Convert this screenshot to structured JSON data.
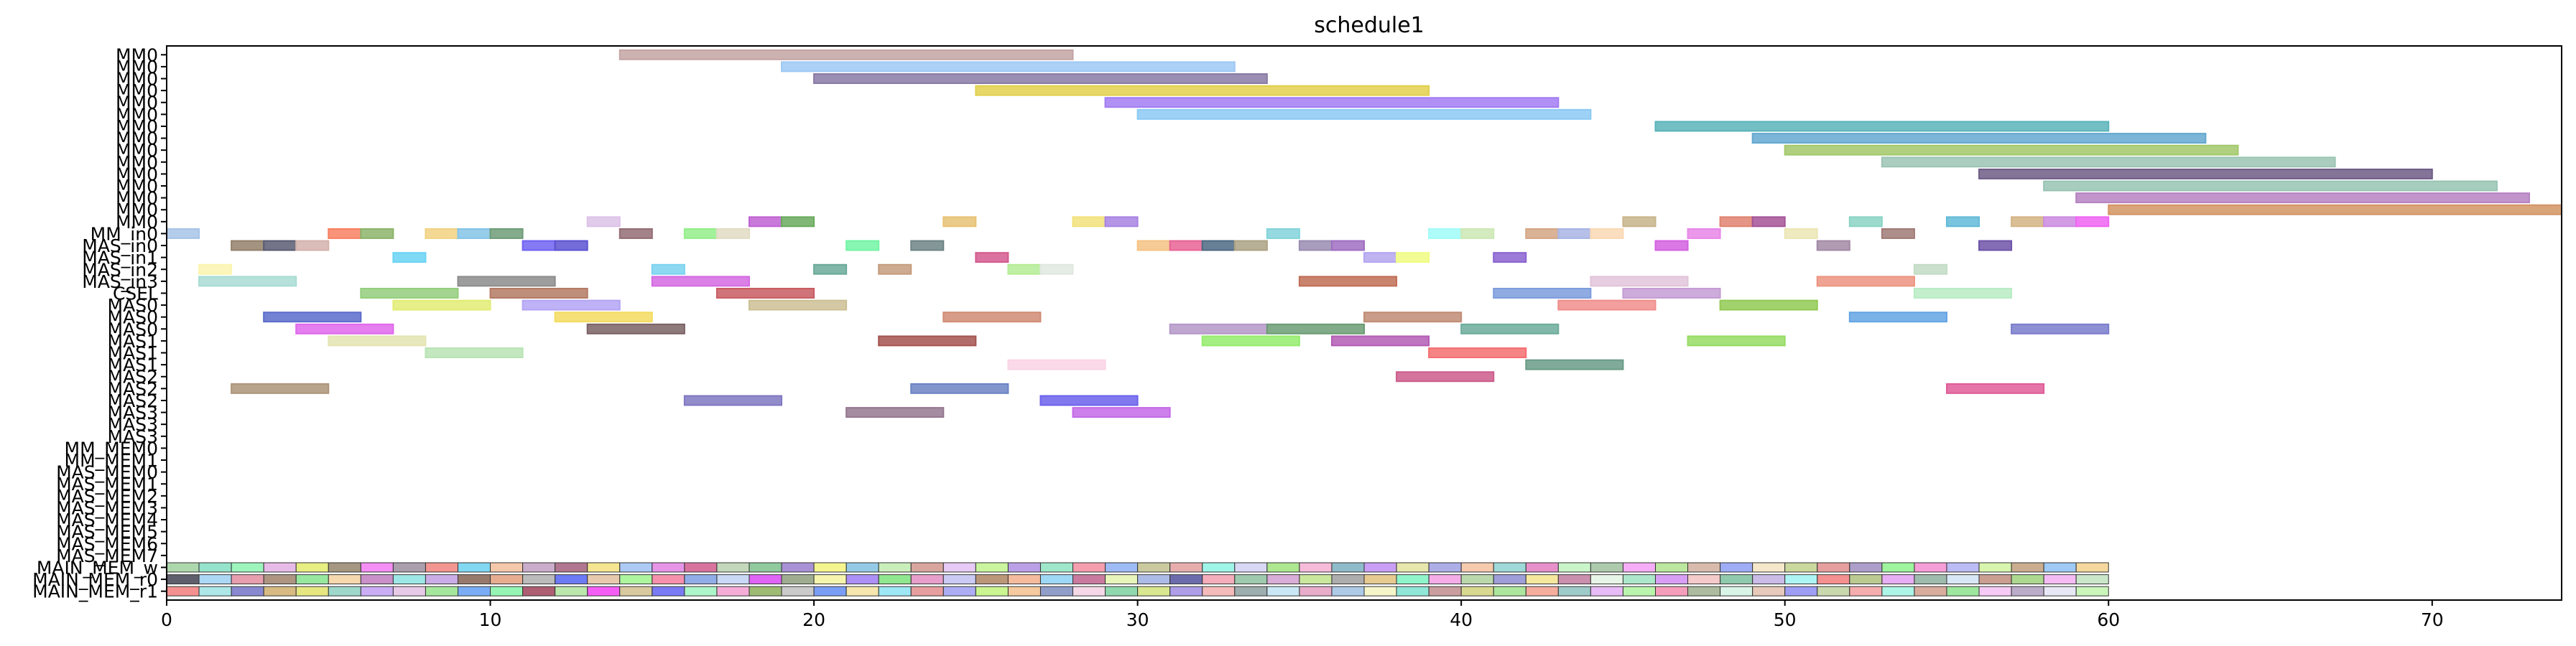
{
  "chart_data": {
    "type": "gantt",
    "title": "schedule1",
    "xlim": [
      0,
      74
    ],
    "x_ticks": [
      0,
      10,
      20,
      30,
      40,
      50,
      60,
      70
    ],
    "rows": [
      "MM0",
      "MM0",
      "MM0",
      "MM0",
      "MM0",
      "MM0",
      "MM0",
      "MM0",
      "MM0",
      "MM0",
      "MM0",
      "MM0",
      "MM0",
      "MM0",
      "MM0",
      "MM_in0",
      "MAS_in0",
      "MAS_in1",
      "MAS_in2",
      "MAS_in3",
      "CSEL",
      "MAS0",
      "MAS0",
      "MAS0",
      "MAS1",
      "MAS1",
      "MAS1",
      "MAS2",
      "MAS2",
      "MAS2",
      "MAS3",
      "MAS3",
      "MAS3",
      "MM_MEM0",
      "MM_MEM1",
      "MAS_MEM0",
      "MAS_MEM1",
      "MAS_MEM2",
      "MAS_MEM3",
      "MAS_MEM4",
      "MAS_MEM5",
      "MAS_MEM6",
      "MAS_MEM7",
      "MAIN_MEM_w",
      "MAIN_MEM_r0",
      "MAIN_MEM_r1"
    ],
    "tasks": [
      {
        "row": 0,
        "start": 14,
        "end": 28,
        "color": "#c4a4a4"
      },
      {
        "row": 1,
        "start": 19,
        "end": 33,
        "color": "#9ec8f4"
      },
      {
        "row": 2,
        "start": 20,
        "end": 34,
        "color": "#8a7aa6"
      },
      {
        "row": 3,
        "start": 25,
        "end": 39,
        "color": "#e2d04c"
      },
      {
        "row": 4,
        "start": 29,
        "end": 43,
        "color": "#a27cf2"
      },
      {
        "row": 5,
        "start": 30,
        "end": 44,
        "color": "#8ccaf4"
      },
      {
        "row": 6,
        "start": 46,
        "end": 60,
        "color": "#5ab4ba"
      },
      {
        "row": 7,
        "start": 49,
        "end": 63,
        "color": "#64a8d0"
      },
      {
        "row": 8,
        "start": 50,
        "end": 64,
        "color": "#a2c86a"
      },
      {
        "row": 9,
        "start": 53,
        "end": 67,
        "color": "#9cc4b4"
      },
      {
        "row": 10,
        "start": 56,
        "end": 70,
        "color": "#6e5c86"
      },
      {
        "row": 11,
        "start": 58,
        "end": 72,
        "color": "#98c4b4"
      },
      {
        "row": 12,
        "start": 59,
        "end": 73,
        "color": "#b682c2"
      },
      {
        "row": 13,
        "start": 60,
        "end": 74,
        "color": "#d49464"
      },
      {
        "row": 14,
        "start": 13,
        "end": 14,
        "color": "#dcc2e8"
      },
      {
        "row": 14,
        "start": 18,
        "end": 19,
        "color": "#c062d4"
      },
      {
        "row": 14,
        "start": 19,
        "end": 20,
        "color": "#6aaa5e"
      },
      {
        "row": 14,
        "start": 24,
        "end": 25,
        "color": "#e8c274"
      },
      {
        "row": 14,
        "start": 28,
        "end": 29,
        "color": "#f2e27a"
      },
      {
        "row": 14,
        "start": 29,
        "end": 30,
        "color": "#a882e2"
      },
      {
        "row": 14,
        "start": 45,
        "end": 46,
        "color": "#c8b48a"
      },
      {
        "row": 14,
        "start": 48,
        "end": 49,
        "color": "#e08270"
      },
      {
        "row": 14,
        "start": 49,
        "end": 50,
        "color": "#a45498"
      },
      {
        "row": 14,
        "start": 52,
        "end": 53,
        "color": "#8ad4c4"
      },
      {
        "row": 14,
        "start": 55,
        "end": 56,
        "color": "#62bad8"
      },
      {
        "row": 14,
        "start": 57,
        "end": 58,
        "color": "#d4b484"
      },
      {
        "row": 14,
        "start": 58,
        "end": 59,
        "color": "#cc8ae0"
      },
      {
        "row": 14,
        "start": 59,
        "end": 60,
        "color": "#f064f2"
      },
      {
        "row": 15,
        "start": 0,
        "end": 1,
        "color": "#a6c4e8"
      },
      {
        "row": 15,
        "start": 5,
        "end": 6,
        "color": "#f88062"
      },
      {
        "row": 15,
        "start": 6,
        "end": 7,
        "color": "#8cb46a"
      },
      {
        "row": 15,
        "start": 8,
        "end": 9,
        "color": "#f2d282"
      },
      {
        "row": 15,
        "start": 9,
        "end": 10,
        "color": "#84c4e8"
      },
      {
        "row": 15,
        "start": 10,
        "end": 11,
        "color": "#6e9c78"
      },
      {
        "row": 15,
        "start": 14,
        "end": 15,
        "color": "#946c74"
      },
      {
        "row": 15,
        "start": 16,
        "end": 17,
        "color": "#94ee8a"
      },
      {
        "row": 15,
        "start": 17,
        "end": 18,
        "color": "#e2dcc4"
      },
      {
        "row": 15,
        "start": 34,
        "end": 35,
        "color": "#84d4dc"
      },
      {
        "row": 15,
        "start": 39,
        "end": 40,
        "color": "#a0fcf8"
      },
      {
        "row": 15,
        "start": 40,
        "end": 41,
        "color": "#cce8b4"
      },
      {
        "row": 15,
        "start": 42,
        "end": 43,
        "color": "#d4a684"
      },
      {
        "row": 15,
        "start": 43,
        "end": 44,
        "color": "#a8b4e4"
      },
      {
        "row": 15,
        "start": 44,
        "end": 45,
        "color": "#fad8b4"
      },
      {
        "row": 15,
        "start": 47,
        "end": 48,
        "color": "#e886e8"
      },
      {
        "row": 15,
        "start": 50,
        "end": 51,
        "color": "#ece6b4"
      },
      {
        "row": 15,
        "start": 53,
        "end": 54,
        "color": "#a07a76"
      },
      {
        "row": 16,
        "start": 2,
        "end": 3,
        "color": "#94806a"
      },
      {
        "row": 16,
        "start": 3,
        "end": 4,
        "color": "#5a5c72"
      },
      {
        "row": 16,
        "start": 4,
        "end": 5,
        "color": "#d4b2ac"
      },
      {
        "row": 16,
        "start": 11,
        "end": 12,
        "color": "#7062f2"
      },
      {
        "row": 16,
        "start": 12,
        "end": 13,
        "color": "#5c52d2"
      },
      {
        "row": 16,
        "start": 21,
        "end": 22,
        "color": "#72f4a4"
      },
      {
        "row": 16,
        "start": 23,
        "end": 24,
        "color": "#6e8486"
      },
      {
        "row": 16,
        "start": 30,
        "end": 31,
        "color": "#f4c284"
      },
      {
        "row": 16,
        "start": 31,
        "end": 32,
        "color": "#e86494"
      },
      {
        "row": 16,
        "start": 32,
        "end": 33,
        "color": "#4c6a82"
      },
      {
        "row": 16,
        "start": 33,
        "end": 34,
        "color": "#aca284"
      },
      {
        "row": 16,
        "start": 35,
        "end": 36,
        "color": "#9a8cb2"
      },
      {
        "row": 16,
        "start": 36,
        "end": 37,
        "color": "#a06ec2"
      },
      {
        "row": 16,
        "start": 46,
        "end": 47,
        "color": "#d462e2"
      },
      {
        "row": 16,
        "start": 51,
        "end": 52,
        "color": "#a28aa6"
      },
      {
        "row": 16,
        "start": 56,
        "end": 57,
        "color": "#6e54a8"
      },
      {
        "row": 17,
        "start": 7,
        "end": 8,
        "color": "#6ad4f4"
      },
      {
        "row": 17,
        "start": 25,
        "end": 26,
        "color": "#d45a8e"
      },
      {
        "row": 17,
        "start": 37,
        "end": 38,
        "color": "#b4a6f0"
      },
      {
        "row": 17,
        "start": 38,
        "end": 39,
        "color": "#f0fc82"
      },
      {
        "row": 17,
        "start": 41,
        "end": 42,
        "color": "#8a64d0"
      },
      {
        "row": 18,
        "start": 1,
        "end": 2,
        "color": "#fcf4b0"
      },
      {
        "row": 18,
        "start": 15,
        "end": 16,
        "color": "#7ad2f0"
      },
      {
        "row": 18,
        "start": 20,
        "end": 21,
        "color": "#6aaa98"
      },
      {
        "row": 18,
        "start": 22,
        "end": 23,
        "color": "#c49c7c"
      },
      {
        "row": 18,
        "start": 26,
        "end": 27,
        "color": "#b4ec94"
      },
      {
        "row": 18,
        "start": 27,
        "end": 28,
        "color": "#e0e8e0"
      },
      {
        "row": 18,
        "start": 54,
        "end": 55,
        "color": "#c2dcc4"
      },
      {
        "row": 19,
        "start": 1,
        "end": 4,
        "color": "#a8dcd4"
      },
      {
        "row": 19,
        "start": 9,
        "end": 12,
        "color": "#8c8c8c"
      },
      {
        "row": 19,
        "start": 15,
        "end": 18,
        "color": "#d46ae2"
      },
      {
        "row": 19,
        "start": 35,
        "end": 38,
        "color": "#c06e56"
      },
      {
        "row": 19,
        "start": 44,
        "end": 47,
        "color": "#e2c4da"
      },
      {
        "row": 19,
        "start": 51,
        "end": 54,
        "color": "#ec9480"
      },
      {
        "row": 20,
        "start": 6,
        "end": 9,
        "color": "#94ce7c"
      },
      {
        "row": 20,
        "start": 10,
        "end": 13,
        "color": "#b47a64"
      },
      {
        "row": 20,
        "start": 17,
        "end": 20,
        "color": "#c85c62"
      },
      {
        "row": 20,
        "start": 41,
        "end": 44,
        "color": "#7c9cdc"
      },
      {
        "row": 20,
        "start": 45,
        "end": 48,
        "color": "#c49cd4"
      },
      {
        "row": 20,
        "start": 54,
        "end": 57,
        "color": "#b8ecc4"
      },
      {
        "row": 21,
        "start": 7,
        "end": 10,
        "color": "#e2ec74"
      },
      {
        "row": 21,
        "start": 11,
        "end": 14,
        "color": "#b4a4f4"
      },
      {
        "row": 21,
        "start": 18,
        "end": 21,
        "color": "#ccc094"
      },
      {
        "row": 21,
        "start": 43,
        "end": 46,
        "color": "#f08e8c"
      },
      {
        "row": 21,
        "start": 48,
        "end": 51,
        "color": "#92ca54"
      },
      {
        "row": 22,
        "start": 3,
        "end": 6,
        "color": "#5c6ccc"
      },
      {
        "row": 22,
        "start": 12,
        "end": 15,
        "color": "#f4dc62"
      },
      {
        "row": 22,
        "start": 24,
        "end": 27,
        "color": "#d08c74"
      },
      {
        "row": 22,
        "start": 37,
        "end": 40,
        "color": "#c08c74"
      },
      {
        "row": 22,
        "start": 52,
        "end": 55,
        "color": "#64a4e4"
      },
      {
        "row": 23,
        "start": 4,
        "end": 7,
        "color": "#e068ec"
      },
      {
        "row": 23,
        "start": 13,
        "end": 16,
        "color": "#7a6264"
      },
      {
        "row": 23,
        "start": 31,
        "end": 34,
        "color": "#b498c8"
      },
      {
        "row": 23,
        "start": 34,
        "end": 37,
        "color": "#6c9c74"
      },
      {
        "row": 23,
        "start": 40,
        "end": 43,
        "color": "#6cac9a"
      },
      {
        "row": 23,
        "start": 57,
        "end": 60,
        "color": "#7a7ccc"
      },
      {
        "row": 24,
        "start": 5,
        "end": 8,
        "color": "#e4e4b4"
      },
      {
        "row": 24,
        "start": 22,
        "end": 25,
        "color": "#a45450"
      },
      {
        "row": 24,
        "start": 32,
        "end": 35,
        "color": "#94ec6c"
      },
      {
        "row": 24,
        "start": 36,
        "end": 39,
        "color": "#b45cb4"
      },
      {
        "row": 24,
        "start": 47,
        "end": 50,
        "color": "#96dc64"
      },
      {
        "row": 25,
        "start": 8,
        "end": 11,
        "color": "#b8e4b4"
      },
      {
        "row": 25,
        "start": 39,
        "end": 42,
        "color": "#f46e70"
      },
      {
        "row": 26,
        "start": 26,
        "end": 29,
        "color": "#fad4e4"
      },
      {
        "row": 26,
        "start": 42,
        "end": 45,
        "color": "#6a9c88"
      },
      {
        "row": 27,
        "start": 38,
        "end": 41,
        "color": "#cc5c8c"
      },
      {
        "row": 28,
        "start": 2,
        "end": 5,
        "color": "#ac9478"
      },
      {
        "row": 28,
        "start": 23,
        "end": 26,
        "color": "#6c84c4"
      },
      {
        "row": 28,
        "start": 55,
        "end": 58,
        "color": "#e05c98"
      },
      {
        "row": 29,
        "start": 16,
        "end": 19,
        "color": "#8078c2"
      },
      {
        "row": 29,
        "start": 27,
        "end": 30,
        "color": "#6c62ec"
      },
      {
        "row": 30,
        "start": 21,
        "end": 24,
        "color": "#947890"
      },
      {
        "row": 30,
        "start": 28,
        "end": 31,
        "color": "#c46ae8"
      }
    ],
    "mem_rows": [
      {
        "row": 43,
        "colors": [
          "#a4d4a4",
          "#8ae0c4",
          "#94f4b4",
          "#e4b4e4",
          "#e4ec74",
          "#9c8c74",
          "#f482f4",
          "#a294a4",
          "#f28a84",
          "#74d4f0",
          "#f4c2a2",
          "#c4a4c4",
          "#a86884",
          "#f4e284",
          "#a4c4f4",
          "#e48ae4",
          "#d46494",
          "#bcd4b4",
          "#84c494",
          "#9e86d0",
          "#f4f484",
          "#8ac4e4",
          "#c4ecb4",
          "#d49c94",
          "#e4c4f4",
          "#c4f494",
          "#b496e4",
          "#94e4c4",
          "#f494a4",
          "#94b4f4",
          "#c4c494",
          "#e4a4a4",
          "#94f4e4",
          "#d4d4f4",
          "#a4e484",
          "#f4b4d4",
          "#84b4c4",
          "#c494f4",
          "#e4e4a4",
          "#a4a4e4",
          "#f4c4a4",
          "#94d4d4",
          "#e484c4",
          "#c4f4c4",
          "#a4c4a4",
          "#f4a4f4",
          "#b4e494",
          "#d4b4a4",
          "#94a4f4",
          "#f4e4c4",
          "#c4d494",
          "#e49494",
          "#a494c4",
          "#94f494",
          "#f494d4",
          "#b4b4f4",
          "#d4f4a4",
          "#c4a484",
          "#94c4f4",
          "#f4d494"
        ]
      },
      {
        "row": 44,
        "colors": [
          "#4c4c5c",
          "#a4d4f4",
          "#e494a4",
          "#a48a74",
          "#8ce494",
          "#f4d4a4",
          "#c484c4",
          "#94e4e4",
          "#c4a4e4",
          "#8c6c5c",
          "#e4a484",
          "#b4b4b4",
          "#5c6cf4",
          "#e4c4a4",
          "#a4f494",
          "#f484a4",
          "#84a4e4",
          "#c4d4f4",
          "#dc54f4",
          "#94a484",
          "#f4f4a4",
          "#a484f4",
          "#84e484",
          "#e494c4",
          "#c4c4f4",
          "#b48c6c",
          "#f4b494",
          "#94d4f4",
          "#c46c94",
          "#e4f4b4",
          "#a4b4e4",
          "#5c5ca4",
          "#f4a4b4",
          "#94c4a4",
          "#d4a4d4",
          "#c4e494",
          "#a4a4a4",
          "#e4c484",
          "#84f4c4",
          "#f4a4e4",
          "#b4d4a4",
          "#9494d4",
          "#f4e494",
          "#c484a4",
          "#e4f4e4",
          "#a4e4c4",
          "#d494f4",
          "#f4c4c4",
          "#84c4a4",
          "#c4b4e4",
          "#a4f4f4",
          "#f48484",
          "#b4c484",
          "#e4a4f4",
          "#94b4a4",
          "#d4e4f4",
          "#c49484",
          "#a4d484",
          "#f4b4f4",
          "#c4e4c4"
        ]
      },
      {
        "row": 45,
        "colors": [
          "#f48484",
          "#a4e4e4",
          "#7c7ccc",
          "#d4b474",
          "#e4e474",
          "#94d4c4",
          "#c4a4f4",
          "#e4c4e4",
          "#9ce494",
          "#6ca4f4",
          "#8cf4ac",
          "#a44c64",
          "#b4e4a4",
          "#f44cf4",
          "#d4c494",
          "#6c6cf4",
          "#a4f4c4",
          "#f4a4d4",
          "#94b464",
          "#c4c4c4",
          "#6c94f4",
          "#f4e4a4",
          "#94e4f4",
          "#e49494",
          "#a4a4f4",
          "#c4f484",
          "#f4c494",
          "#8494c4",
          "#f4d4e4",
          "#84d4a4",
          "#d4e484",
          "#a494e4",
          "#f4b4b4",
          "#94a4a4",
          "#c4e4f4",
          "#e4a4c4",
          "#a4c4e4",
          "#f4f4c4",
          "#84e4d4",
          "#c49494",
          "#d4d484",
          "#a4e494",
          "#f4a494",
          "#94c4c4",
          "#e4b4f4",
          "#b4f4a4",
          "#f494b4",
          "#a4b494",
          "#d4f4e4",
          "#e4c4b4",
          "#9494f4",
          "#c4d4a4",
          "#f4a4a4",
          "#a4f4e4",
          "#d4a494",
          "#94e494",
          "#f4c4f4",
          "#b4a4c4",
          "#e4e4f4",
          "#c4f4b4"
        ]
      }
    ]
  }
}
